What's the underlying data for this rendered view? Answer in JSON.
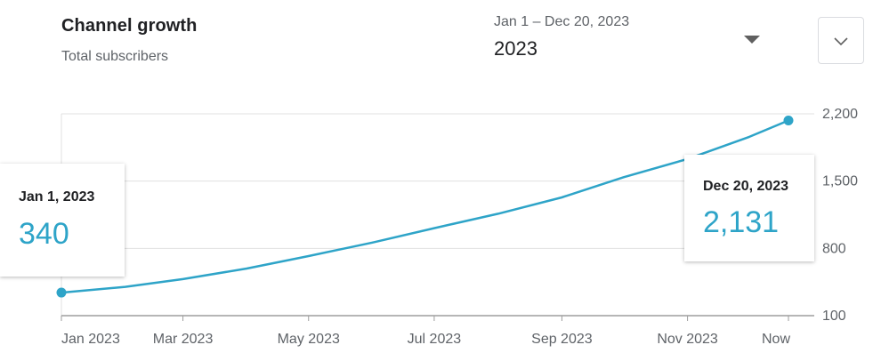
{
  "header": {
    "title": "Channel growth",
    "subtitle": "Total subscribers"
  },
  "date_picker": {
    "range": "Jan 1 – Dec 20, 2023",
    "value": "2023",
    "icon": "dropdown-triangle-icon"
  },
  "expand_button": {
    "icon": "chevron-down-icon"
  },
  "tooltips": {
    "start": {
      "date": "Jan 1, 2023",
      "value": "340"
    },
    "end": {
      "date": "Dec 20, 2023",
      "value": "2,131"
    }
  },
  "colors": {
    "line": "#2ea4c8",
    "grid": "#e0e0e0",
    "axis": "#9e9e9e",
    "tick_text": "#5f6368"
  },
  "chart_data": {
    "type": "line",
    "title": "Channel growth",
    "subtitle": "Total subscribers",
    "y_ticks": [
      100,
      800,
      1500,
      2200
    ],
    "y_tick_labels": [
      "100",
      "800",
      "1,500",
      "2,200"
    ],
    "ylim": [
      100,
      2200
    ],
    "x_tick_labels": [
      "Jan 2023",
      "Mar 2023",
      "May 2023",
      "Jul 2023",
      "Sep 2023",
      "Nov 2023",
      "Now"
    ],
    "x_tick_dates": [
      "2023-01-01",
      "2023-03-01",
      "2023-05-01",
      "2023-07-01",
      "2023-09-01",
      "2023-11-01",
      "2023-12-20"
    ],
    "xlim": [
      "2023-01-01",
      "2023-12-20"
    ],
    "grid": true,
    "series": [
      {
        "x": [
          "2023-01-01",
          "2023-02-01",
          "2023-03-01",
          "2023-04-01",
          "2023-05-01",
          "2023-06-01",
          "2023-07-01",
          "2023-08-01",
          "2023-09-01",
          "2023-10-01",
          "2023-11-01",
          "2023-12-01",
          "2023-12-20"
        ],
        "y": [
          340,
          400,
          480,
          590,
          720,
          860,
          1010,
          1160,
          1330,
          1540,
          1730,
          1960,
          2131
        ]
      }
    ]
  }
}
